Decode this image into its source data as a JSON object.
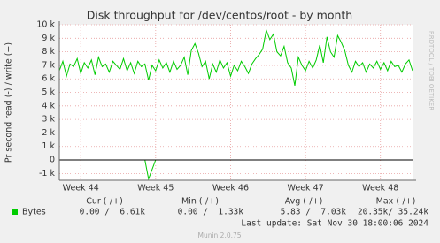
{
  "chart_data": {
    "type": "line",
    "title": "Disk throughput for /dev/centos/root - by month",
    "y_label": "Pr second read (-) / write (+)",
    "side_text": "RRDTOOL / TOBI OETIKER",
    "series": [
      {
        "name": "Bytes",
        "color": "#00cc00",
        "values": [
          6600,
          7300,
          6200,
          7100,
          6900,
          7500,
          6400,
          7200,
          6800,
          7400,
          6300,
          7600,
          6900,
          7100,
          6500,
          7300,
          7000,
          6700,
          7500,
          6600,
          7200,
          6400,
          7300,
          6900,
          7100,
          5900,
          7000,
          6600,
          7400,
          6800,
          7200,
          6500,
          7300,
          6700,
          7000,
          7600,
          6300,
          8100,
          8600,
          7900,
          6900,
          7300,
          6000,
          7100,
          6500,
          7400,
          6800,
          7200,
          6200,
          7000,
          6600,
          7300,
          6900,
          6400,
          7100,
          7500,
          7800,
          8200,
          9600,
          8900,
          9300,
          8000,
          7700,
          8400,
          7200,
          6800,
          5500,
          7600,
          7000,
          6600,
          7300,
          6800,
          7400,
          8500,
          7200,
          9100,
          8000,
          7600,
          9200,
          8700,
          8100,
          7000,
          6500,
          7300,
          6900,
          7200,
          6500,
          7100,
          6800,
          7300,
          6700,
          7200,
          6600,
          7300,
          6900,
          7000,
          6500,
          7100,
          7400,
          6600
        ],
        "read_values": [
          0,
          0,
          0,
          0,
          0,
          0,
          0,
          0,
          0,
          0,
          0,
          0,
          0,
          0,
          0,
          0,
          0,
          0,
          0,
          0,
          0,
          0,
          0,
          0,
          0,
          -1400,
          -700,
          0,
          0,
          0,
          0,
          0,
          0,
          0,
          0,
          0,
          0,
          0,
          0,
          0,
          0,
          0,
          0,
          0,
          0,
          0,
          0,
          0,
          0,
          0,
          0,
          0,
          0,
          0,
          0,
          0,
          0,
          0,
          0,
          0,
          0,
          0,
          0,
          0,
          0,
          0,
          0,
          0,
          0,
          0,
          0,
          0,
          0,
          0,
          0,
          0,
          0,
          0,
          0,
          0,
          0,
          0,
          0,
          0,
          0,
          0,
          0,
          0,
          0,
          0,
          0,
          0,
          0,
          0,
          0,
          0,
          0,
          0,
          0,
          0
        ]
      }
    ],
    "xlim": [
      0,
      99
    ],
    "xticks": [
      {
        "value": 6,
        "label": "Week 44"
      },
      {
        "value": 27,
        "label": "Week 45"
      },
      {
        "value": 48,
        "label": "Week 46"
      },
      {
        "value": 69,
        "label": "Week 47"
      },
      {
        "value": 90,
        "label": "Week 48"
      }
    ],
    "ylim": [
      -1500,
      10000
    ],
    "yticks": [
      {
        "value": -1000,
        "label": "-1 k"
      },
      0,
      {
        "value": 1000,
        "label": "1 k"
      },
      {
        "value": 2000,
        "label": "2 k"
      },
      {
        "value": 3000,
        "label": "3 k"
      },
      {
        "value": 4000,
        "label": "4 k"
      },
      {
        "value": 5000,
        "label": "5 k"
      },
      {
        "value": 6000,
        "label": "6 k"
      },
      {
        "value": 7000,
        "label": "7 k"
      },
      {
        "value": 8000,
        "label": "8 k"
      },
      {
        "value": 9000,
        "label": "9 k"
      },
      {
        "value": 10000,
        "label": "10 k"
      }
    ],
    "grid": true,
    "legend_table": {
      "headers": [
        "Cur (-/+)",
        "Min (-/+)",
        "Avg (-/+)",
        "Max (-/+)"
      ],
      "rows": [
        {
          "label": "Bytes",
          "cells": [
            "0.00 /  6.61k",
            "0.00 /  1.33k",
            "5.83 /  7.03k",
            "20.35k/ 35.24k"
          ]
        }
      ]
    },
    "last_update": "Last update: Sat Nov 30 18:00:06 2024",
    "footer": "Munin 2.0.75"
  }
}
